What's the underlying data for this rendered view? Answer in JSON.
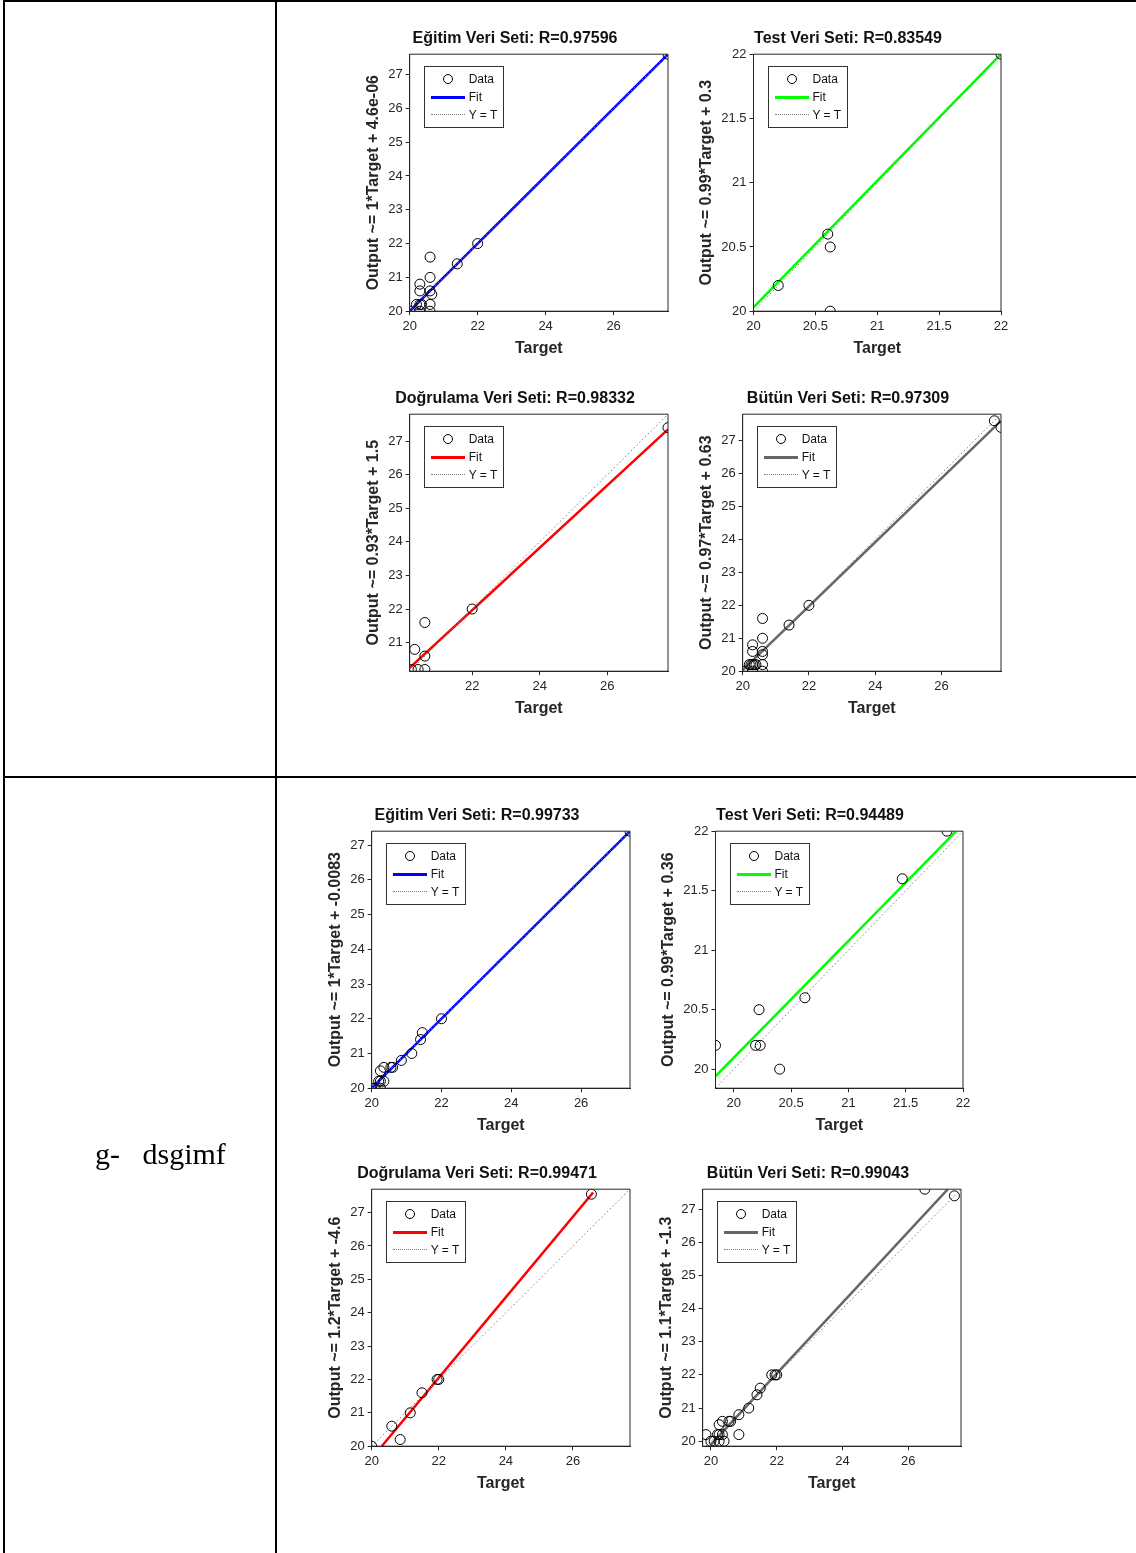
{
  "chart_data": [
    {
      "type": "scatter",
      "title": "Eğitim Veri Seti: R=0.97596",
      "xlabel": "Target",
      "ylabel": "Output ~= 1*Target + 4.6e-06",
      "xlim": [
        20,
        27.6
      ],
      "ylim": [
        20,
        27.6
      ],
      "xticks": [
        20,
        22,
        24,
        26
      ],
      "yticks": [
        20,
        21,
        22,
        23,
        24,
        25,
        26,
        27
      ],
      "legend": "top left",
      "series": [
        {
          "name": "Data",
          "type": "scatter",
          "marker": "circle",
          "color": "#000000",
          "x": [
            20,
            20.2,
            20.3,
            20.35,
            20.3,
            20.3,
            20.3,
            20.6,
            20.6,
            20.6,
            20.65,
            20.6,
            20.6,
            21.4,
            22,
            27.6
          ],
          "values": [
            20,
            20.2,
            20.2,
            20.2,
            20,
            20.6,
            20.8,
            21.6,
            21,
            20.6,
            20.5,
            20.2,
            20,
            21.4,
            22,
            27.6
          ]
        },
        {
          "name": "Fit",
          "type": "line",
          "color": "#0000ff",
          "x": [
            20,
            27.6
          ],
          "values": [
            20,
            27.6
          ]
        },
        {
          "name": "Y = T",
          "type": "line",
          "line_style": "dotted",
          "color": "#808080",
          "x": [
            20,
            27.6
          ],
          "values": [
            20,
            27.6
          ]
        }
      ]
    },
    {
      "type": "scatter",
      "title": "Test Veri Seti: R=0.83549",
      "xlabel": "Target",
      "ylabel": "Output ~= 0.99*Target + 0.3",
      "xlim": [
        20,
        22
      ],
      "ylim": [
        20,
        22
      ],
      "xticks": [
        20,
        20.5,
        21,
        21.5,
        22
      ],
      "yticks": [
        20,
        20.5,
        21,
        21.5,
        22
      ],
      "legend": "top left",
      "series": [
        {
          "name": "Data",
          "type": "scatter",
          "marker": "circle",
          "color": "#000000",
          "x": [
            20.2,
            20.6,
            20.62,
            20.62,
            22
          ],
          "values": [
            20.2,
            20.6,
            20.5,
            20,
            22
          ]
        },
        {
          "name": "Fit",
          "type": "line",
          "color": "#00ff00",
          "x": [
            20,
            22
          ],
          "values": [
            20.03,
            22
          ]
        },
        {
          "name": "Y = T",
          "type": "line",
          "line_style": "dotted",
          "color": "#808080",
          "x": [
            20,
            22
          ],
          "values": [
            20,
            22
          ]
        }
      ]
    },
    {
      "type": "scatter",
      "title": "Doğrulama Veri Seti: R=0.98332",
      "xlabel": "Target",
      "ylabel": "Output ~= 0.93*Target + 1.5",
      "xlim": [
        20.15,
        27.8
      ],
      "ylim": [
        20.15,
        27.8
      ],
      "xticks": [
        22,
        24,
        26
      ],
      "yticks": [
        21,
        22,
        23,
        24,
        25,
        26,
        27
      ],
      "legend": "top left",
      "series": [
        {
          "name": "Data",
          "type": "scatter",
          "marker": "circle",
          "color": "#000000",
          "x": [
            20.2,
            20.4,
            20.6,
            20.3,
            20.6,
            20.6,
            22,
            27.8
          ],
          "values": [
            20.2,
            20.2,
            20.2,
            20.8,
            21.6,
            20.6,
            22,
            27.4
          ]
        },
        {
          "name": "Fit",
          "type": "line",
          "color": "#ff0000",
          "x": [
            20.15,
            27.8
          ],
          "values": [
            20.25,
            27.35
          ]
        },
        {
          "name": "Y = T",
          "type": "line",
          "line_style": "dotted",
          "color": "#808080",
          "x": [
            20.15,
            27.8
          ],
          "values": [
            20.15,
            27.8
          ]
        }
      ]
    },
    {
      "type": "scatter",
      "title": "Bütün Veri Seti: R=0.97309",
      "xlabel": "Target",
      "ylabel": "Output ~= 0.97*Target + 0.63",
      "xlim": [
        20,
        27.8
      ],
      "ylim": [
        20,
        27.8
      ],
      "xticks": [
        20,
        22,
        24,
        26
      ],
      "yticks": [
        20,
        21,
        22,
        23,
        24,
        25,
        26,
        27
      ],
      "legend": "top left",
      "series": [
        {
          "name": "Data",
          "type": "scatter",
          "marker": "circle",
          "color": "#000000",
          "x": [
            20,
            20.2,
            20.25,
            20.3,
            20.35,
            20.4,
            20.3,
            20.3,
            20.3,
            20.6,
            20.6,
            20.6,
            20.6,
            20.6,
            20.6,
            21.4,
            22,
            27.6,
            27.8
          ],
          "values": [
            20,
            20.2,
            20.2,
            20.2,
            20.2,
            20.2,
            20,
            20.6,
            20.8,
            21.6,
            21,
            20.6,
            20.5,
            20.2,
            20,
            21.4,
            22,
            27.6,
            27.4
          ]
        },
        {
          "name": "Fit",
          "type": "line",
          "color": "#666666",
          "x": [
            20,
            27.8
          ],
          "values": [
            20.03,
            27.6
          ]
        },
        {
          "name": "Y = T",
          "type": "line",
          "line_style": "dotted",
          "color": "#808080",
          "x": [
            20,
            27.8
          ],
          "values": [
            20,
            27.8
          ]
        }
      ]
    },
    {
      "type": "scatter",
      "title": "Eğitim Veri Seti: R=0.99733",
      "xlabel": "Target",
      "ylabel": "Output ~= 1*Target + -0.0083",
      "xlim": [
        20,
        27.4
      ],
      "ylim": [
        20,
        27.4
      ],
      "xticks": [
        20,
        22,
        24,
        26
      ],
      "yticks": [
        20,
        21,
        22,
        23,
        24,
        25,
        26,
        27
      ],
      "legend": "top left",
      "annotations": [
        "g-   dsgimf"
      ],
      "series": [
        {
          "name": "Data",
          "type": "scatter",
          "marker": "circle",
          "color": "#000000",
          "x": [
            20,
            20.1,
            20.25,
            20.2,
            20.25,
            20.35,
            20.25,
            20.35,
            20.55,
            20.6,
            20.85,
            21.15,
            21.4,
            21.45,
            22,
            27.4
          ],
          "values": [
            20,
            20,
            20,
            20.2,
            20.2,
            20.2,
            20.5,
            20.6,
            20.6,
            20.6,
            20.8,
            21,
            21.4,
            21.6,
            22,
            27.4
          ]
        },
        {
          "name": "Fit",
          "type": "line",
          "color": "#0000ff",
          "x": [
            20,
            27.4
          ],
          "values": [
            20,
            27.4
          ]
        },
        {
          "name": "Y = T",
          "type": "line",
          "line_style": "dotted",
          "color": "#808080",
          "x": [
            20,
            27.4
          ],
          "values": [
            20,
            27.4
          ]
        }
      ]
    },
    {
      "type": "scatter",
      "title": "Test Veri Seti: R=0.94489",
      "xlabel": "Target",
      "ylabel": "Output ~= 0.99*Target + 0.36",
      "xlim": [
        19.84,
        22
      ],
      "ylim": [
        19.84,
        22
      ],
      "xticks": [
        20,
        20.5,
        21,
        21.5,
        22
      ],
      "yticks": [
        20,
        20.5,
        21,
        21.5,
        22
      ],
      "legend": "top left",
      "series": [
        {
          "name": "Data",
          "type": "scatter",
          "marker": "circle",
          "color": "#000000",
          "x": [
            19.84,
            20.19,
            20.23,
            20.22,
            20.4,
            20.62,
            21.47,
            21.86
          ],
          "values": [
            20.2,
            20.2,
            20.2,
            20.5,
            20,
            20.6,
            21.6,
            22
          ]
        },
        {
          "name": "Fit",
          "type": "line",
          "color": "#00ff00",
          "x": [
            19.84,
            21.94
          ],
          "values": [
            19.94,
            22
          ]
        },
        {
          "name": "Y = T",
          "type": "line",
          "line_style": "dotted",
          "color": "#808080",
          "x": [
            19.84,
            22
          ],
          "values": [
            19.84,
            22
          ]
        }
      ]
    },
    {
      "type": "scatter",
      "title": "Doğrulama Veri Seti: R=0.99471",
      "xlabel": "Target",
      "ylabel": "Output ~= 1.2*Target + -4.6",
      "xlim": [
        20,
        27.7
      ],
      "ylim": [
        20,
        27.7
      ],
      "xticks": [
        20,
        22,
        24,
        26
      ],
      "yticks": [
        20,
        21,
        22,
        23,
        24,
        25,
        26,
        27
      ],
      "legend": "top left",
      "series": [
        {
          "name": "Data",
          "type": "scatter",
          "marker": "circle",
          "color": "#000000",
          "x": [
            20,
            20.6,
            20.85,
            21.15,
            21.5,
            21.95,
            22,
            26.55
          ],
          "values": [
            20,
            20.6,
            20.2,
            21,
            21.6,
            22,
            22,
            27.55
          ]
        },
        {
          "name": "Fit",
          "type": "line",
          "color": "#ff0000",
          "x": [
            20.3,
            26.6
          ],
          "values": [
            20,
            27.6
          ]
        },
        {
          "name": "Y = T",
          "type": "line",
          "line_style": "dotted",
          "color": "#808080",
          "x": [
            20,
            27.7
          ],
          "values": [
            20,
            27.7
          ]
        }
      ]
    },
    {
      "type": "scatter",
      "title": "Bütün Veri Seti: R=0.99043",
      "xlabel": "Target",
      "ylabel": "Output ~= 1.1*Target + -1.3",
      "xlim": [
        19.75,
        27.6
      ],
      "ylim": [
        19.85,
        27.6
      ],
      "xticks": [
        20,
        22,
        24,
        26
      ],
      "yticks": [
        20,
        21,
        22,
        23,
        24,
        25,
        26,
        27
      ],
      "legend": "top left",
      "series": [
        {
          "name": "Data",
          "type": "scatter",
          "marker": "circle",
          "color": "#000000",
          "x": [
            19.85,
            20,
            20.1,
            20.25,
            20.4,
            20.2,
            20.25,
            20.35,
            20.25,
            20.35,
            20.55,
            20.6,
            20.85,
            20.85,
            21.15,
            21.4,
            21.5,
            21.85,
            21.95,
            22,
            26.5,
            27.4
          ],
          "values": [
            20.2,
            20,
            20,
            20,
            20,
            20.2,
            20.2,
            20.2,
            20.5,
            20.6,
            20.6,
            20.6,
            20.8,
            20.2,
            21,
            21.4,
            21.6,
            22,
            22,
            22,
            27.6,
            27.4
          ]
        },
        {
          "name": "Fit",
          "type": "line",
          "color": "#666666",
          "x": [
            20,
            27.2
          ],
          "values": [
            19.9,
            27.6
          ]
        },
        {
          "name": "Y = T",
          "type": "line",
          "line_style": "dotted",
          "color": "#808080",
          "x": [
            19.85,
            27.6
          ],
          "values": [
            19.85,
            27.6
          ]
        }
      ]
    }
  ]
}
